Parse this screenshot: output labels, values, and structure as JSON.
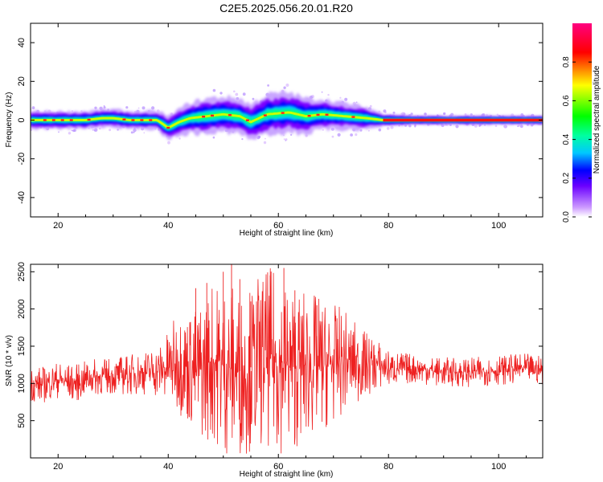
{
  "figure_title": "C2E5.2025.056.20.01.R20",
  "colors": {
    "snr_line": "#ee2020",
    "colormap": [
      "#ffffff",
      "#cc99ff",
      "#6a00ff",
      "#0000ff",
      "#00c8ff",
      "#00ffa0",
      "#00ff00",
      "#ffff00",
      "#ff0000",
      "#ff0080"
    ]
  },
  "chart_data": [
    {
      "type": "heatmap",
      "xlabel": "Height of straight line (km)",
      "ylabel": "Frequency (Hz)",
      "xlim": [
        15,
        108
      ],
      "ylim": [
        -50,
        50
      ],
      "xticks": [
        "20",
        "40",
        "60",
        "80",
        "100"
      ],
      "yticks": [
        "40",
        "20",
        "0",
        "-20",
        "-40"
      ],
      "xtick_values": [
        20,
        40,
        60,
        80,
        100
      ],
      "ytick_values": [
        40,
        20,
        0,
        -20,
        -40
      ],
      "ridge": {
        "x": [
          15,
          20,
          25,
          28,
          30,
          33,
          35,
          38,
          39,
          40,
          42,
          44,
          47,
          50,
          53,
          55,
          58,
          62,
          65,
          68,
          72,
          76,
          79,
          85,
          95,
          108
        ],
        "y": [
          0,
          0,
          0,
          1,
          1,
          0,
          0,
          0,
          -2,
          -4,
          -1,
          1,
          2,
          3,
          2,
          -1,
          3,
          4,
          2,
          3,
          2,
          1,
          0,
          0,
          0,
          0
        ],
        "spread_hz": [
          4,
          4,
          4,
          4,
          4,
          4,
          4,
          4,
          5,
          5,
          6,
          7,
          8,
          8,
          8,
          8,
          9,
          9,
          8,
          7,
          6,
          5,
          3,
          2,
          2,
          2
        ]
      },
      "colorbar": {
        "label": "Normalized spectral amplitude",
        "range": [
          0,
          1
        ],
        "ticks": [
          "0.0",
          "0.2",
          "0.4",
          "0.6",
          "0.8"
        ],
        "tick_values": [
          0,
          0.2,
          0.4,
          0.6,
          0.8
        ]
      },
      "grid": false
    },
    {
      "type": "line",
      "xlabel": "Height of straight line (km)",
      "ylabel": "SNR (10 * v/v)",
      "xlim": [
        15,
        108
      ],
      "ylim": [
        0,
        2600
      ],
      "xticks": [
        "20",
        "40",
        "60",
        "80",
        "100"
      ],
      "yticks": [
        "500",
        "1000",
        "1500",
        "2000",
        "2500"
      ],
      "xtick_values": [
        20,
        40,
        60,
        80,
        100
      ],
      "ytick_values": [
        500,
        1000,
        1500,
        2000,
        2500
      ],
      "series": [
        {
          "x": [
            15,
            17,
            20,
            23,
            26,
            30,
            33,
            36,
            39,
            42,
            45,
            48,
            51,
            54,
            57,
            60,
            63,
            66,
            69,
            72,
            75,
            78,
            80,
            85,
            90,
            95,
            100,
            105,
            108
          ],
          "y": [
            1000,
            980,
            1050,
            1000,
            1080,
            1100,
            1120,
            1150,
            1180,
            1300,
            1150,
            1300,
            1200,
            1150,
            1350,
            1300,
            1200,
            1250,
            1250,
            1300,
            1250,
            1250,
            1200,
            1200,
            1150,
            1150,
            1180,
            1200,
            1180
          ],
          "noise_amplitude": [
            250,
            250,
            250,
            250,
            250,
            250,
            280,
            300,
            400,
            700,
            900,
            1100,
            1200,
            1100,
            1200,
            1250,
            1100,
            1000,
            850,
            700,
            500,
            350,
            250,
            200,
            200,
            200,
            200,
            200,
            200
          ]
        }
      ],
      "peaks": [
        {
          "x": 45,
          "y": 2280
        },
        {
          "x": 47,
          "y": 2350
        },
        {
          "x": 50,
          "y": 2500
        },
        {
          "x": 51.5,
          "y": 2600
        },
        {
          "x": 53,
          "y": 2400
        },
        {
          "x": 55,
          "y": 2100
        },
        {
          "x": 58.5,
          "y": 2450
        },
        {
          "x": 61,
          "y": 2550
        },
        {
          "x": 63,
          "y": 2250
        },
        {
          "x": 67,
          "y": 2050
        }
      ],
      "grid": false
    }
  ]
}
